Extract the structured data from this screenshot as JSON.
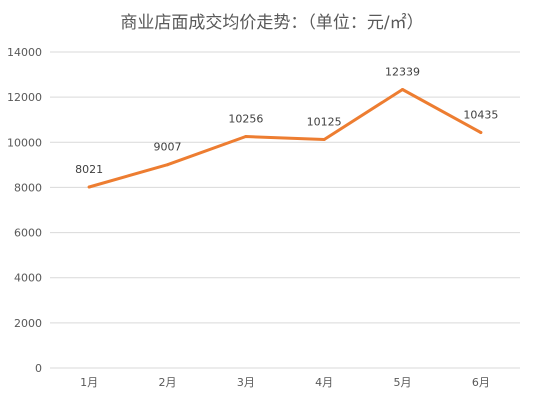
{
  "chart_data": {
    "type": "line",
    "title": "商业店面成交均价走势：（单位：元/㎡）",
    "categories": [
      "1月",
      "2月",
      "3月",
      "4月",
      "5月",
      "6月"
    ],
    "series": [
      {
        "values": [
          8021,
          9007,
          10256,
          10125,
          12339,
          10435
        ]
      }
    ],
    "data_labels": [
      "8021",
      "9007",
      "10256",
      "10125",
      "12339",
      "10435"
    ],
    "ylim": [
      0,
      14000
    ],
    "yticks": [
      0,
      2000,
      4000,
      6000,
      8000,
      10000,
      12000,
      14000
    ],
    "grid": true,
    "legend": "none",
    "colors": {
      "line": "#ed7d31",
      "grid": "#d9d9d9",
      "text": "#595959"
    }
  }
}
